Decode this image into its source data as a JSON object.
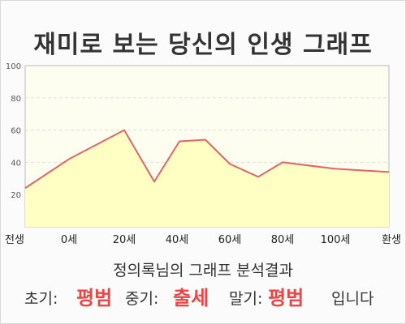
{
  "title": "재미로 보는 당신의 인생 그래프",
  "chart_data": {
    "type": "area",
    "title": "재미로 보는 당신의 인생 그래프",
    "ylim": [
      0,
      100
    ],
    "yticks": [
      20,
      40,
      60,
      80,
      100
    ],
    "x_ticklabels": [
      "전생",
      "0세",
      "20세",
      "40세",
      "60세",
      "80세",
      "100세",
      "환생"
    ],
    "points": [
      {
        "x": "전생",
        "y": 24
      },
      {
        "x": "0세",
        "y": 42
      },
      {
        "x": "20세",
        "y": 60
      },
      {
        "x": "30세",
        "y": 28
      },
      {
        "x": "38세",
        "y": 53
      },
      {
        "x": "48세",
        "y": 54
      },
      {
        "x": "60세",
        "y": 39
      },
      {
        "x": "72세",
        "y": 31
      },
      {
        "x": "80세",
        "y": 40
      },
      {
        "x": "100세",
        "y": 36
      },
      {
        "x": "환생",
        "y": 34
      }
    ],
    "grid": true,
    "colors": {
      "line": "#e06666",
      "fill": "#ffffc4",
      "plot_bg": "#fefef0"
    }
  },
  "result": {
    "title": "정의록님의 그래프 분석결과",
    "early_label": "초기:",
    "early_value": "평범",
    "mid_label": "중기:",
    "mid_value": "출세",
    "late_label": "말기:",
    "late_value": "평범",
    "suffix": "입니다"
  }
}
